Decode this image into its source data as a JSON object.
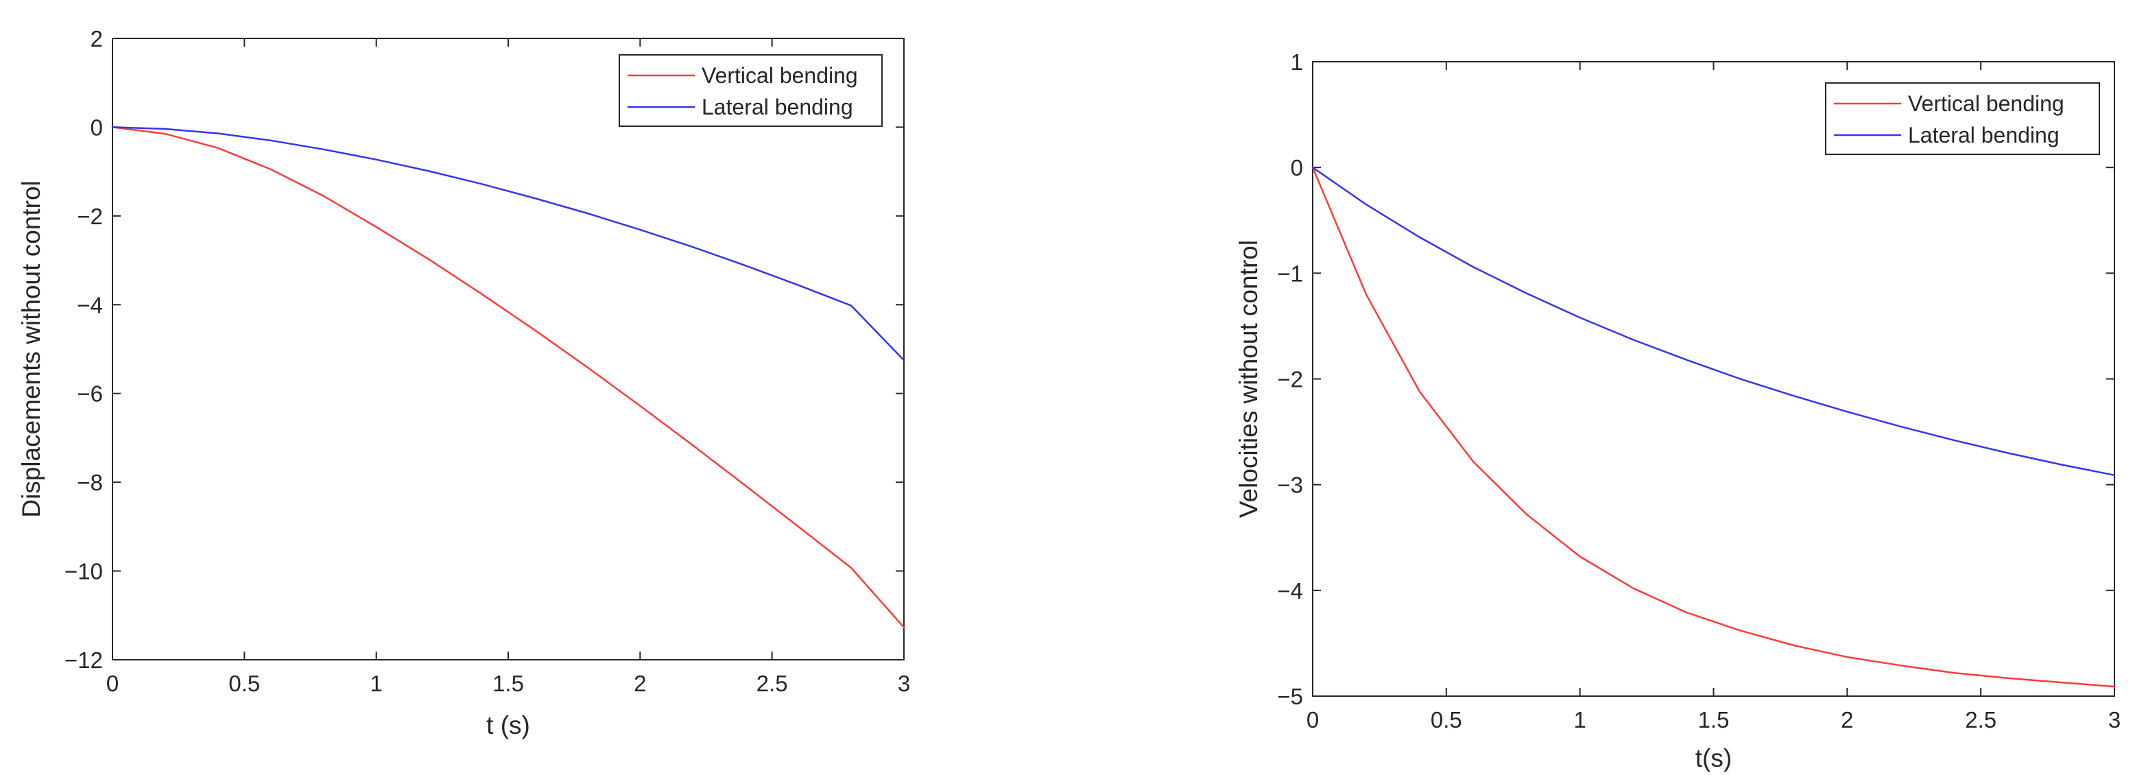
{
  "chart_data": [
    {
      "type": "line",
      "title": "",
      "xlabel": "t (s)",
      "ylabel": "Displacements without control",
      "xlim": [
        0,
        3
      ],
      "ylim": [
        -12,
        2
      ],
      "xticks": [
        0,
        0.5,
        1,
        1.5,
        2,
        2.5,
        3
      ],
      "xtick_labels": [
        "0",
        "0.5",
        "1",
        "1.5",
        "2",
        "2.5",
        "3"
      ],
      "yticks": [
        2,
        0,
        -2,
        -4,
        -6,
        -8,
        -10,
        -12
      ],
      "ytick_labels": [
        "2",
        "0",
        "−2",
        "−4",
        "−6",
        "−8",
        "−10",
        "−12"
      ],
      "grid": false,
      "legend_position": "top-right",
      "x": [
        0,
        0.2,
        0.4,
        0.6,
        0.8,
        1.0,
        1.2,
        1.4,
        1.6,
        1.8,
        2.0,
        2.2,
        2.4,
        2.6,
        2.8,
        3.0
      ],
      "series": [
        {
          "name": "Vertical bending",
          "color": "#ff3b3b",
          "values": [
            0,
            -0.15,
            -0.47,
            -0.95,
            -1.55,
            -2.25,
            -2.98,
            -3.76,
            -4.57,
            -5.41,
            -6.28,
            -7.17,
            -8.08,
            -9.0,
            -9.93,
            -11.27
          ]
        },
        {
          "name": "Lateral bending",
          "color": "#3535f0",
          "values": [
            0,
            -0.04,
            -0.14,
            -0.3,
            -0.5,
            -0.73,
            -0.99,
            -1.28,
            -1.6,
            -1.94,
            -2.31,
            -2.7,
            -3.12,
            -3.56,
            -4.02,
            -5.25
          ]
        }
      ]
    },
    {
      "type": "line",
      "title": "",
      "xlabel": "t(s)",
      "ylabel": "Velocities without control",
      "xlim": [
        0,
        3
      ],
      "ylim": [
        -5,
        1
      ],
      "xticks": [
        0,
        0.5,
        1,
        1.5,
        2,
        2.5,
        3
      ],
      "xtick_labels": [
        "0",
        "0.5",
        "1",
        "1.5",
        "2",
        "2.5",
        "3"
      ],
      "yticks": [
        1,
        0,
        -1,
        -2,
        -3,
        -4,
        -5
      ],
      "ytick_labels": [
        "1",
        "0",
        "−1",
        "−2",
        "−3",
        "−4",
        "−5"
      ],
      "grid": false,
      "legend_position": "top-right",
      "x": [
        0,
        0.2,
        0.4,
        0.6,
        0.8,
        1.0,
        1.2,
        1.4,
        1.6,
        1.8,
        2.0,
        2.2,
        2.4,
        2.6,
        2.8,
        3.0
      ],
      "series": [
        {
          "name": "Vertical bending",
          "color": "#ff3b3b",
          "values": [
            0,
            -1.2,
            -2.12,
            -2.78,
            -3.28,
            -3.68,
            -3.98,
            -4.21,
            -4.38,
            -4.52,
            -4.63,
            -4.71,
            -4.78,
            -4.83,
            -4.87,
            -4.91
          ]
        },
        {
          "name": "Lateral bending",
          "color": "#3535f0",
          "values": [
            0,
            -0.35,
            -0.66,
            -0.94,
            -1.19,
            -1.42,
            -1.63,
            -1.82,
            -2.0,
            -2.16,
            -2.31,
            -2.45,
            -2.58,
            -2.7,
            -2.81,
            -2.91
          ]
        }
      ]
    }
  ]
}
